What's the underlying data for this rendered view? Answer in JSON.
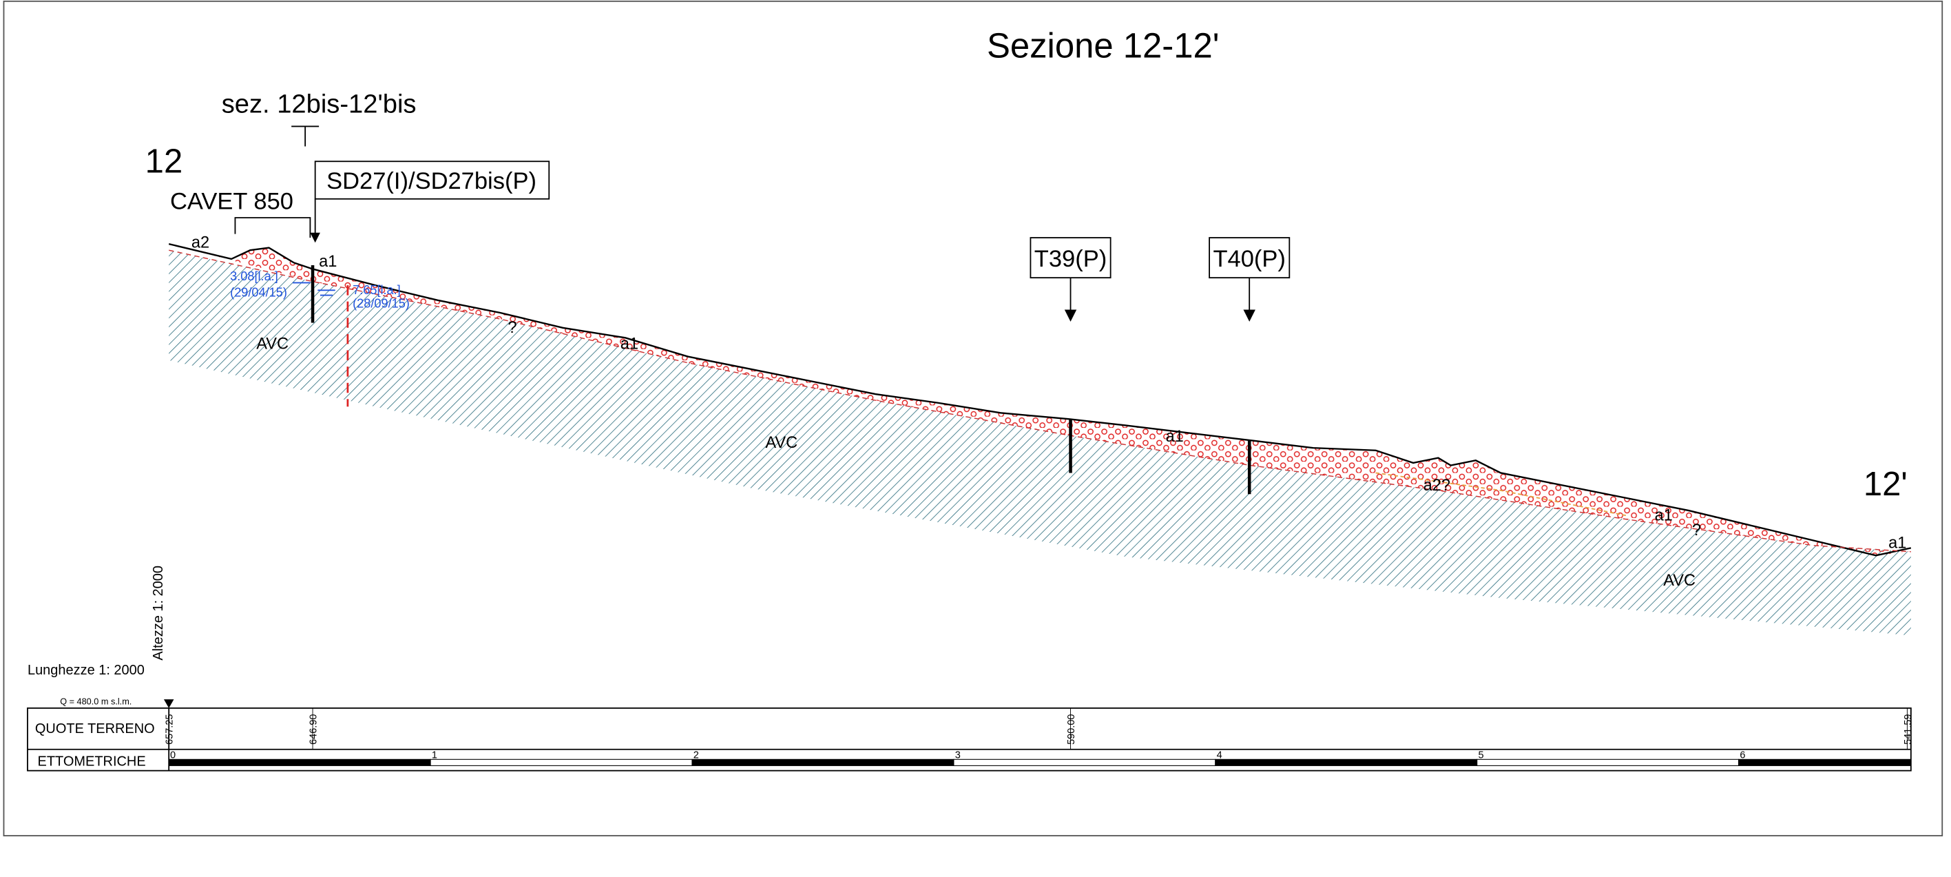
{
  "header": {
    "title": "Sezione 12-12'",
    "cross_section": "sez. 12bis-12'bis",
    "start": "12",
    "end": "12'"
  },
  "boreholes": [
    {
      "label": "SD27(I)/SD27bis(P)"
    },
    {
      "label": "T39(P)"
    },
    {
      "label": "T40(P)"
    }
  ],
  "annotations": {
    "cavet": "CAVET 850",
    "units": [
      "a2",
      "a1",
      "AVC",
      "?",
      "a1",
      "AVC",
      "a1",
      "a2?",
      "a1",
      "?",
      "a1",
      "AVC"
    ],
    "water": [
      {
        "depth": "3.08[l.a.]",
        "date": "(29/04/15)"
      },
      {
        "depth": "7.65[l.a.]",
        "date": "(28/09/15)"
      }
    ]
  },
  "scales": {
    "heights": "Altezze 1: 2000",
    "lengths": "Lunghezze 1: 2000",
    "datum": "Q =  480.0 m s.l.m."
  },
  "table": {
    "rows": [
      "QUOTE TERRENO",
      "ETTOMETRICHE"
    ],
    "elevations": [
      "657.25",
      "646.90",
      "590.00",
      "541.59"
    ],
    "hectometers": [
      "0",
      "1",
      "2",
      "3",
      "4",
      "5",
      "6"
    ]
  }
}
